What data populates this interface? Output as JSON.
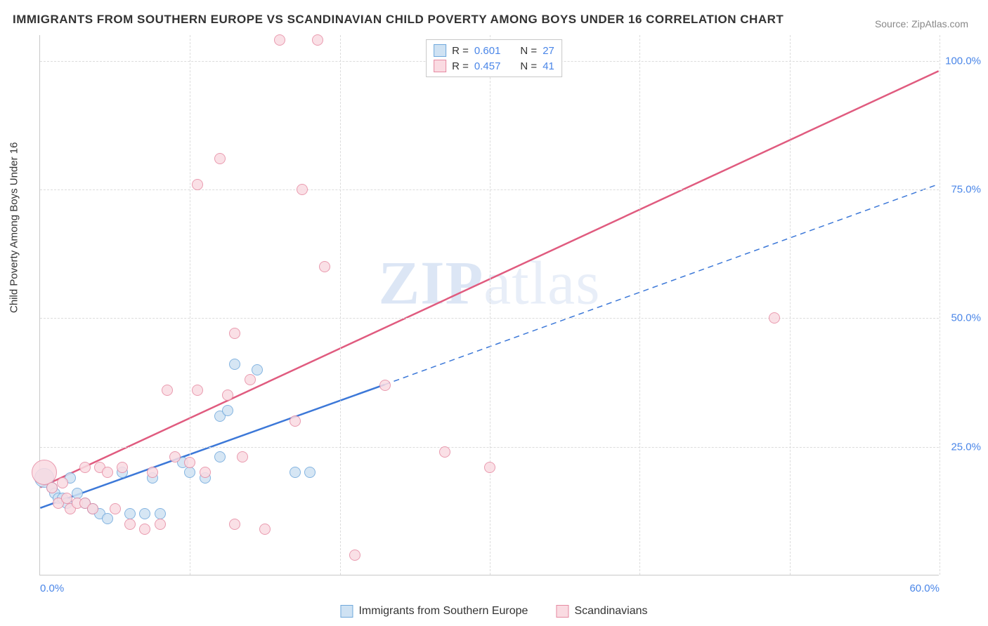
{
  "title": "IMMIGRANTS FROM SOUTHERN EUROPE VS SCANDINAVIAN CHILD POVERTY AMONG BOYS UNDER 16 CORRELATION CHART",
  "source": "Source: ZipAtlas.com",
  "y_axis_title": "Child Poverty Among Boys Under 16",
  "watermark_bold": "ZIP",
  "watermark_light": "atlas",
  "chart": {
    "type": "scatter",
    "xlim": [
      0,
      60
    ],
    "ylim": [
      0,
      105
    ],
    "xticks": [
      {
        "v": 0,
        "label": "0.0%"
      },
      {
        "v": 60,
        "label": "60.0%"
      }
    ],
    "yticks": [
      {
        "v": 25,
        "label": "25.0%"
      },
      {
        "v": 50,
        "label": "50.0%"
      },
      {
        "v": 75,
        "label": "75.0%"
      },
      {
        "v": 100,
        "label": "100.0%"
      }
    ],
    "vgrid": [
      0,
      10,
      20,
      30,
      40,
      50,
      60
    ],
    "grid_color": "#dcdcdc",
    "background_color": "#ffffff",
    "series": [
      {
        "id": "blue",
        "name": "Immigrants from Southern Europe",
        "fill": "#cfe2f3",
        "stroke": "#6fa8dc",
        "line_color": "#3c78d8",
        "r_label": "R =",
        "r_value": "0.601",
        "n_label": "N =",
        "n_value": "27",
        "trend": {
          "x1": 0,
          "y1": 13,
          "x2": 23,
          "y2": 37,
          "x2_ext": 60,
          "y2_ext": 76
        },
        "points": [
          {
            "x": 0.3,
            "y": 19,
            "r": 14
          },
          {
            "x": 0.8,
            "y": 17,
            "r": 8
          },
          {
            "x": 1.0,
            "y": 16,
            "r": 8
          },
          {
            "x": 1.2,
            "y": 15,
            "r": 8
          },
          {
            "x": 1.5,
            "y": 15,
            "r": 8
          },
          {
            "x": 1.8,
            "y": 14,
            "r": 8
          },
          {
            "x": 2.0,
            "y": 19,
            "r": 8
          },
          {
            "x": 2.5,
            "y": 16,
            "r": 8
          },
          {
            "x": 3.0,
            "y": 14,
            "r": 8
          },
          {
            "x": 3.5,
            "y": 13,
            "r": 8
          },
          {
            "x": 4.0,
            "y": 12,
            "r": 8
          },
          {
            "x": 4.5,
            "y": 11,
            "r": 8
          },
          {
            "x": 5.5,
            "y": 20,
            "r": 8
          },
          {
            "x": 6.0,
            "y": 12,
            "r": 8
          },
          {
            "x": 7.0,
            "y": 12,
            "r": 8
          },
          {
            "x": 7.5,
            "y": 19,
            "r": 8
          },
          {
            "x": 8.0,
            "y": 12,
            "r": 8
          },
          {
            "x": 9.5,
            "y": 22,
            "r": 8
          },
          {
            "x": 10.0,
            "y": 20,
            "r": 8
          },
          {
            "x": 11.0,
            "y": 19,
            "r": 8
          },
          {
            "x": 12.0,
            "y": 31,
            "r": 8
          },
          {
            "x": 12.0,
            "y": 23,
            "r": 8
          },
          {
            "x": 12.5,
            "y": 32,
            "r": 8
          },
          {
            "x": 13.0,
            "y": 41,
            "r": 8
          },
          {
            "x": 14.5,
            "y": 40,
            "r": 8
          },
          {
            "x": 17.0,
            "y": 20,
            "r": 8
          },
          {
            "x": 18.0,
            "y": 20,
            "r": 8
          }
        ]
      },
      {
        "id": "pink",
        "name": "Scandinavians",
        "fill": "#fadbe2",
        "stroke": "#e68aa2",
        "line_color": "#e05b7f",
        "r_label": "R =",
        "r_value": "0.457",
        "n_label": "N =",
        "n_value": "41",
        "trend": {
          "x1": 0,
          "y1": 17,
          "x2": 60,
          "y2": 98
        },
        "points": [
          {
            "x": 0.3,
            "y": 20,
            "r": 18
          },
          {
            "x": 0.8,
            "y": 17,
            "r": 8
          },
          {
            "x": 1.2,
            "y": 14,
            "r": 8
          },
          {
            "x": 1.5,
            "y": 18,
            "r": 8
          },
          {
            "x": 1.8,
            "y": 15,
            "r": 8
          },
          {
            "x": 2.0,
            "y": 13,
            "r": 8
          },
          {
            "x": 2.5,
            "y": 14,
            "r": 8
          },
          {
            "x": 3.0,
            "y": 14,
            "r": 8
          },
          {
            "x": 3.0,
            "y": 21,
            "r": 8
          },
          {
            "x": 3.5,
            "y": 13,
            "r": 8
          },
          {
            "x": 4.0,
            "y": 21,
            "r": 8
          },
          {
            "x": 4.5,
            "y": 20,
            "r": 8
          },
          {
            "x": 5.0,
            "y": 13,
            "r": 8
          },
          {
            "x": 5.5,
            "y": 21,
            "r": 8
          },
          {
            "x": 6.0,
            "y": 10,
            "r": 8
          },
          {
            "x": 7.0,
            "y": 9,
            "r": 8
          },
          {
            "x": 7.5,
            "y": 20,
            "r": 8
          },
          {
            "x": 8.0,
            "y": 10,
            "r": 8
          },
          {
            "x": 8.5,
            "y": 36,
            "r": 8
          },
          {
            "x": 9.0,
            "y": 23,
            "r": 8
          },
          {
            "x": 10.0,
            "y": 22,
            "r": 8
          },
          {
            "x": 10.5,
            "y": 36,
            "r": 8
          },
          {
            "x": 10.5,
            "y": 76,
            "r": 8
          },
          {
            "x": 11.0,
            "y": 20,
            "r": 8
          },
          {
            "x": 12.0,
            "y": 81,
            "r": 8
          },
          {
            "x": 12.5,
            "y": 35,
            "r": 8
          },
          {
            "x": 13.0,
            "y": 47,
            "r": 8
          },
          {
            "x": 13.0,
            "y": 10,
            "r": 8
          },
          {
            "x": 13.5,
            "y": 23,
            "r": 8
          },
          {
            "x": 14.0,
            "y": 38,
            "r": 8
          },
          {
            "x": 15.0,
            "y": 9,
            "r": 8
          },
          {
            "x": 16.0,
            "y": 104,
            "r": 8
          },
          {
            "x": 17.0,
            "y": 30,
            "r": 8
          },
          {
            "x": 17.5,
            "y": 75,
            "r": 8
          },
          {
            "x": 18.5,
            "y": 104,
            "r": 8
          },
          {
            "x": 19.0,
            "y": 60,
            "r": 8
          },
          {
            "x": 21.0,
            "y": 4,
            "r": 8
          },
          {
            "x": 23.0,
            "y": 37,
            "r": 8
          },
          {
            "x": 27.0,
            "y": 24,
            "r": 8
          },
          {
            "x": 30.0,
            "y": 21,
            "r": 8
          },
          {
            "x": 49.0,
            "y": 50,
            "r": 8
          }
        ]
      }
    ]
  },
  "bottom_legend": [
    {
      "swatch_fill": "#cfe2f3",
      "swatch_stroke": "#6fa8dc",
      "label": "Immigrants from Southern Europe"
    },
    {
      "swatch_fill": "#fadbe2",
      "swatch_stroke": "#e68aa2",
      "label": "Scandinavians"
    }
  ]
}
